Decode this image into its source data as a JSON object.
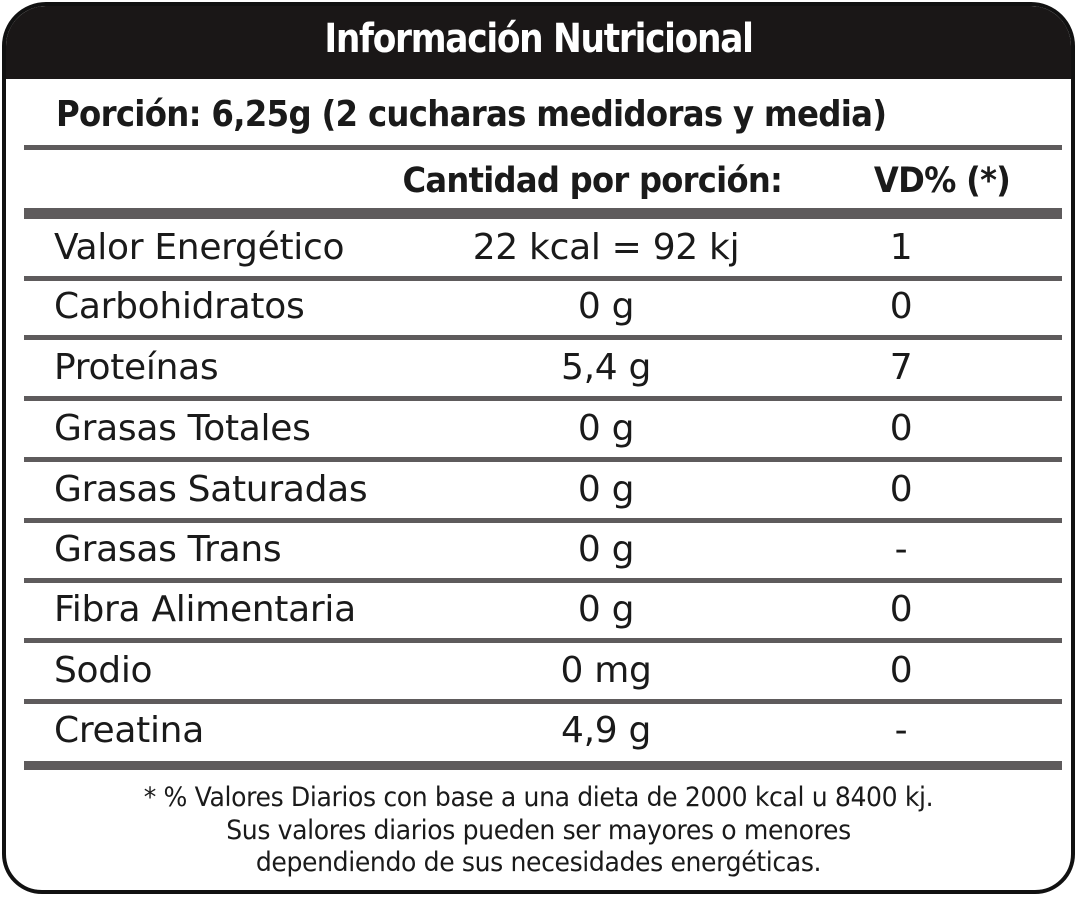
{
  "title": "Información Nutricional",
  "serving": "Porción: 6,25g (2 cucharas medidoras y media)",
  "columns": {
    "amount": "Cantidad por porción:",
    "dv": "VD% (*)"
  },
  "rows": [
    {
      "name": "Valor Energético",
      "amount": "22 kcal = 92 kj",
      "dv": "1"
    },
    {
      "name": "Carbohidratos",
      "amount": "0 g",
      "dv": "0"
    },
    {
      "name": "Proteínas",
      "amount": "5,4 g",
      "dv": "7"
    },
    {
      "name": "Grasas Totales",
      "amount": "0 g",
      "dv": "0"
    },
    {
      "name": "Grasas Saturadas",
      "amount": "0 g",
      "dv": "0"
    },
    {
      "name": "Grasas Trans",
      "amount": "0 g",
      "dv": "-"
    },
    {
      "name": "Fibra Alimentaria",
      "amount": "0 g",
      "dv": "0"
    },
    {
      "name": "Sodio",
      "amount": "0 mg",
      "dv": "0"
    },
    {
      "name": "Creatina",
      "amount": "4,9 g",
      "dv": "-"
    }
  ],
  "footnote": [
    "* % Valores Diarios con base a una dieta de 2000 kcal u 8400 kj.",
    "Sus valores diarios pueden ser mayores o menores",
    "dependiendo de sus necesidades energéticas."
  ],
  "colors": {
    "header": "#1a1717",
    "rule": "#5e5b5c",
    "text": "#1a1a1a"
  }
}
